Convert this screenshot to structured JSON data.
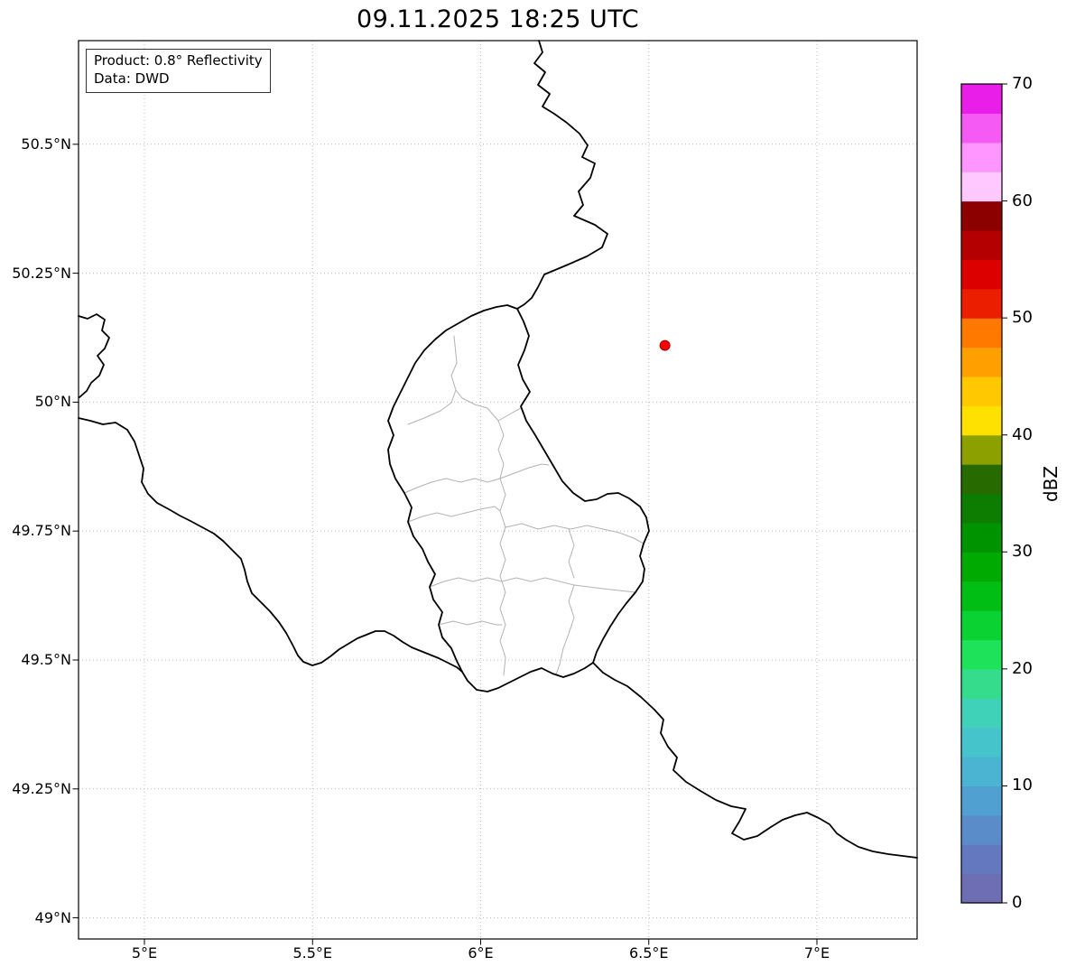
{
  "title": "09.11.2025 18:25 UTC",
  "info_box": {
    "product": "Product: 0.8° Reflectivity",
    "data_source": "Data: DWD"
  },
  "chart_data": {
    "type": "map",
    "subtype": "weather-radar-reflectivity",
    "title": "09.11.2025 18:25 UTC",
    "lon_range": [
      4.804,
      7.298
    ],
    "lat_range": [
      48.959,
      50.701
    ],
    "x_ticks": [
      {
        "lon": 5.0,
        "label": "5°E"
      },
      {
        "lon": 5.5,
        "label": "5.5°E"
      },
      {
        "lon": 6.0,
        "label": "6°E"
      },
      {
        "lon": 6.5,
        "label": "6.5°E"
      },
      {
        "lon": 7.0,
        "label": "7°E"
      }
    ],
    "y_ticks": [
      {
        "lat": 50.5,
        "label": "50.5°N"
      },
      {
        "lat": 50.25,
        "label": "50.25°N"
      },
      {
        "lat": 50.0,
        "label": "50°N"
      },
      {
        "lat": 49.75,
        "label": "49.75°N"
      },
      {
        "lat": 49.5,
        "label": "49.5°N"
      },
      {
        "lat": 49.25,
        "label": "49.25°N"
      },
      {
        "lat": 49.0,
        "label": "49°N"
      }
    ],
    "grid_style": "dotted",
    "radar_marker": {
      "lon": 6.548,
      "lat": 50.11,
      "color": "#ff0000",
      "edge_color": "#990000"
    },
    "echoes": [],
    "colorbar": {
      "label": "dBZ",
      "min": 0,
      "max": 70,
      "tick_values": [
        0,
        10,
        20,
        30,
        40,
        50,
        60,
        70
      ],
      "colors_bottom_to_top": [
        "#6e6eb4",
        "#6478c0",
        "#5a8cca",
        "#50a0d2",
        "#4ab4d2",
        "#46c4cc",
        "#40d2b8",
        "#34dc8c",
        "#1ee35a",
        "#0ad232",
        "#00be14",
        "#00aa00",
        "#009300",
        "#0c7d00",
        "#266a00",
        "#8ca000",
        "#ffe100",
        "#ffc800",
        "#ffa000",
        "#ff7800",
        "#eb1e00",
        "#dc0000",
        "#b40000",
        "#8c0000",
        "#ffc8ff",
        "#ff96ff",
        "#f55af5",
        "#e91ee9"
      ]
    }
  },
  "map_geometry": {
    "country_borders": [
      "M 597 45 L 601 58 L 592 70 L 604 80 L 596 94 L 609 104 L 601 118 L 614 126 L 628 136 L 642 148 L 651 161 L 645 174 L 659 181 L 654 197 L 641 212 L 646 227 L 636 239 L 659 249 L 673 259 L 667 274 L 650 284 L 627 294 L 603 304 L 596 318 L 589 330 L 581 337 L 573 342",
      "M 573 342 L 580 356 L 586 372 L 581 388 L 574 404 L 579 420 L 587 434 L 577 450 L 583 466 L 593 482 L 603 499 L 613 516 L 623 533 L 635 546 L 648 555 L 661 553 L 673 547 L 685 546 L 697 552 L 709 561 L 716 573 L 719 588 L 713 602 L 709 616 L 714 630 L 712 644 L 704 656 L 694 668 L 685 680 L 676 694 L 668 708 L 661 722 L 657 734 L 648 740 L 636 746 L 624 750 L 612 746 L 600 740 L 588 744 L 576 750 L 564 756 L 552 762 L 540 766 L 528 764 L 518 754 L 512 744 L 506 732 L 500 718 L 490 706 L 486 692 L 490 678 L 480 664 L 476 650 L 482 636 L 474 622 L 468 608 L 458 594 L 452 578 L 456 562 L 448 546 L 438 530 L 432 514 L 430 498 L 436 482 L 430 466 L 436 450 L 444 434 L 452 418 L 460 402 L 470 388 L 482 376 L 494 366 L 508 358 L 522 350 L 536 344 L 550 340 L 562 338 Z",
      "M 657 734 L 668 745 L 681 753 L 695 760 L 710 772 L 725 786 L 735 797 L 732 812 L 740 827 L 750 839 L 746 853 L 760 866 L 776 876 L 793 886 L 810 893 L 826 896 L 819 910 L 811 923 L 824 930 L 839 926 L 854 916 L 867 908 L 881 903 L 894 900 L 907 906 L 919 913 L 927 923 L 937 930 L 951 938 L 967 943 L 984 946 L 1000 948 L 1016 950",
      "M 87 463 L 100 466 L 114 470 L 128 468 L 141 476 L 149 489 L 154 504 L 159 519 L 157 534 L 164 547 L 174 557 L 187 564 L 199 571 L 211 577 L 224 584 L 237 591 L 247 599 L 257 609 L 267 619 L 271 631 L 274 644 L 279 657 L 289 667 L 299 677 L 309 689 L 317 701 L 324 714 L 330 726 L 336 733 L 346 737 L 356 734 L 366 727 L 376 719 L 386 713 L 396 707 L 406 703 L 416 699 L 426 699 L 436 704 L 446 711 L 456 717 L 466 721 L 476 725 L 486 729 L 496 734 L 506 739 L 512 744",
      "M 87 350 L 97 353 L 107 348 L 116 354 L 113 366 L 121 374 L 116 386 L 108 394 L 115 404 L 110 416 L 101 424 L 96 433 L 88 440"
    ],
    "district_borders": [
      "M 452 470 L 470 463 L 488 455 L 500 446 L 505 432 L 512 441 L 526 448 L 540 452 L 552 466 L 566 458 L 577 452",
      "M 505 432 L 500 416 L 506 402 L 503 372",
      "M 552 466 L 558 482 L 552 498 L 558 514 L 554 530 L 570 524 L 586 518 L 600 514 L 608 515",
      "M 448 546 L 462 540 L 478 534 L 494 530 L 510 534 L 526 530 L 540 534 L 554 530",
      "M 554 530 L 560 548 L 554 566 L 560 584 L 554 602 L 560 620",
      "M 452 578 L 468 572 L 484 568 L 500 572 L 516 568 L 532 564 L 548 561 L 554 566",
      "M 560 584 L 578 580 L 596 586 L 614 582 L 632 586 L 650 582 L 668 586 L 686 590 L 702 596 L 713 602",
      "M 476 650 L 492 644 L 508 640 L 524 644 L 540 640 L 556 644 L 572 640 L 588 644 L 604 640 L 620 644 L 636 648 L 652 650 L 668 652 L 686 654 L 704 656",
      "M 560 620 L 554 638 L 560 656 L 554 674 L 560 692 L 554 710 L 560 728 L 558 748",
      "M 630 586 L 636 604 L 630 622 L 636 640 M 636 648 L 630 666 L 636 684 L 630 702 L 624 718 L 620 736 L 616 747",
      "M 486 692 L 502 688 L 518 692 L 534 688 L 550 692 L 556 692"
    ]
  },
  "style": {
    "country_border_color": "#000000",
    "district_border_color": "#b3b3b3",
    "grid_color": "#bbbbbb",
    "frame_color": "#000000",
    "background": "#ffffff"
  }
}
